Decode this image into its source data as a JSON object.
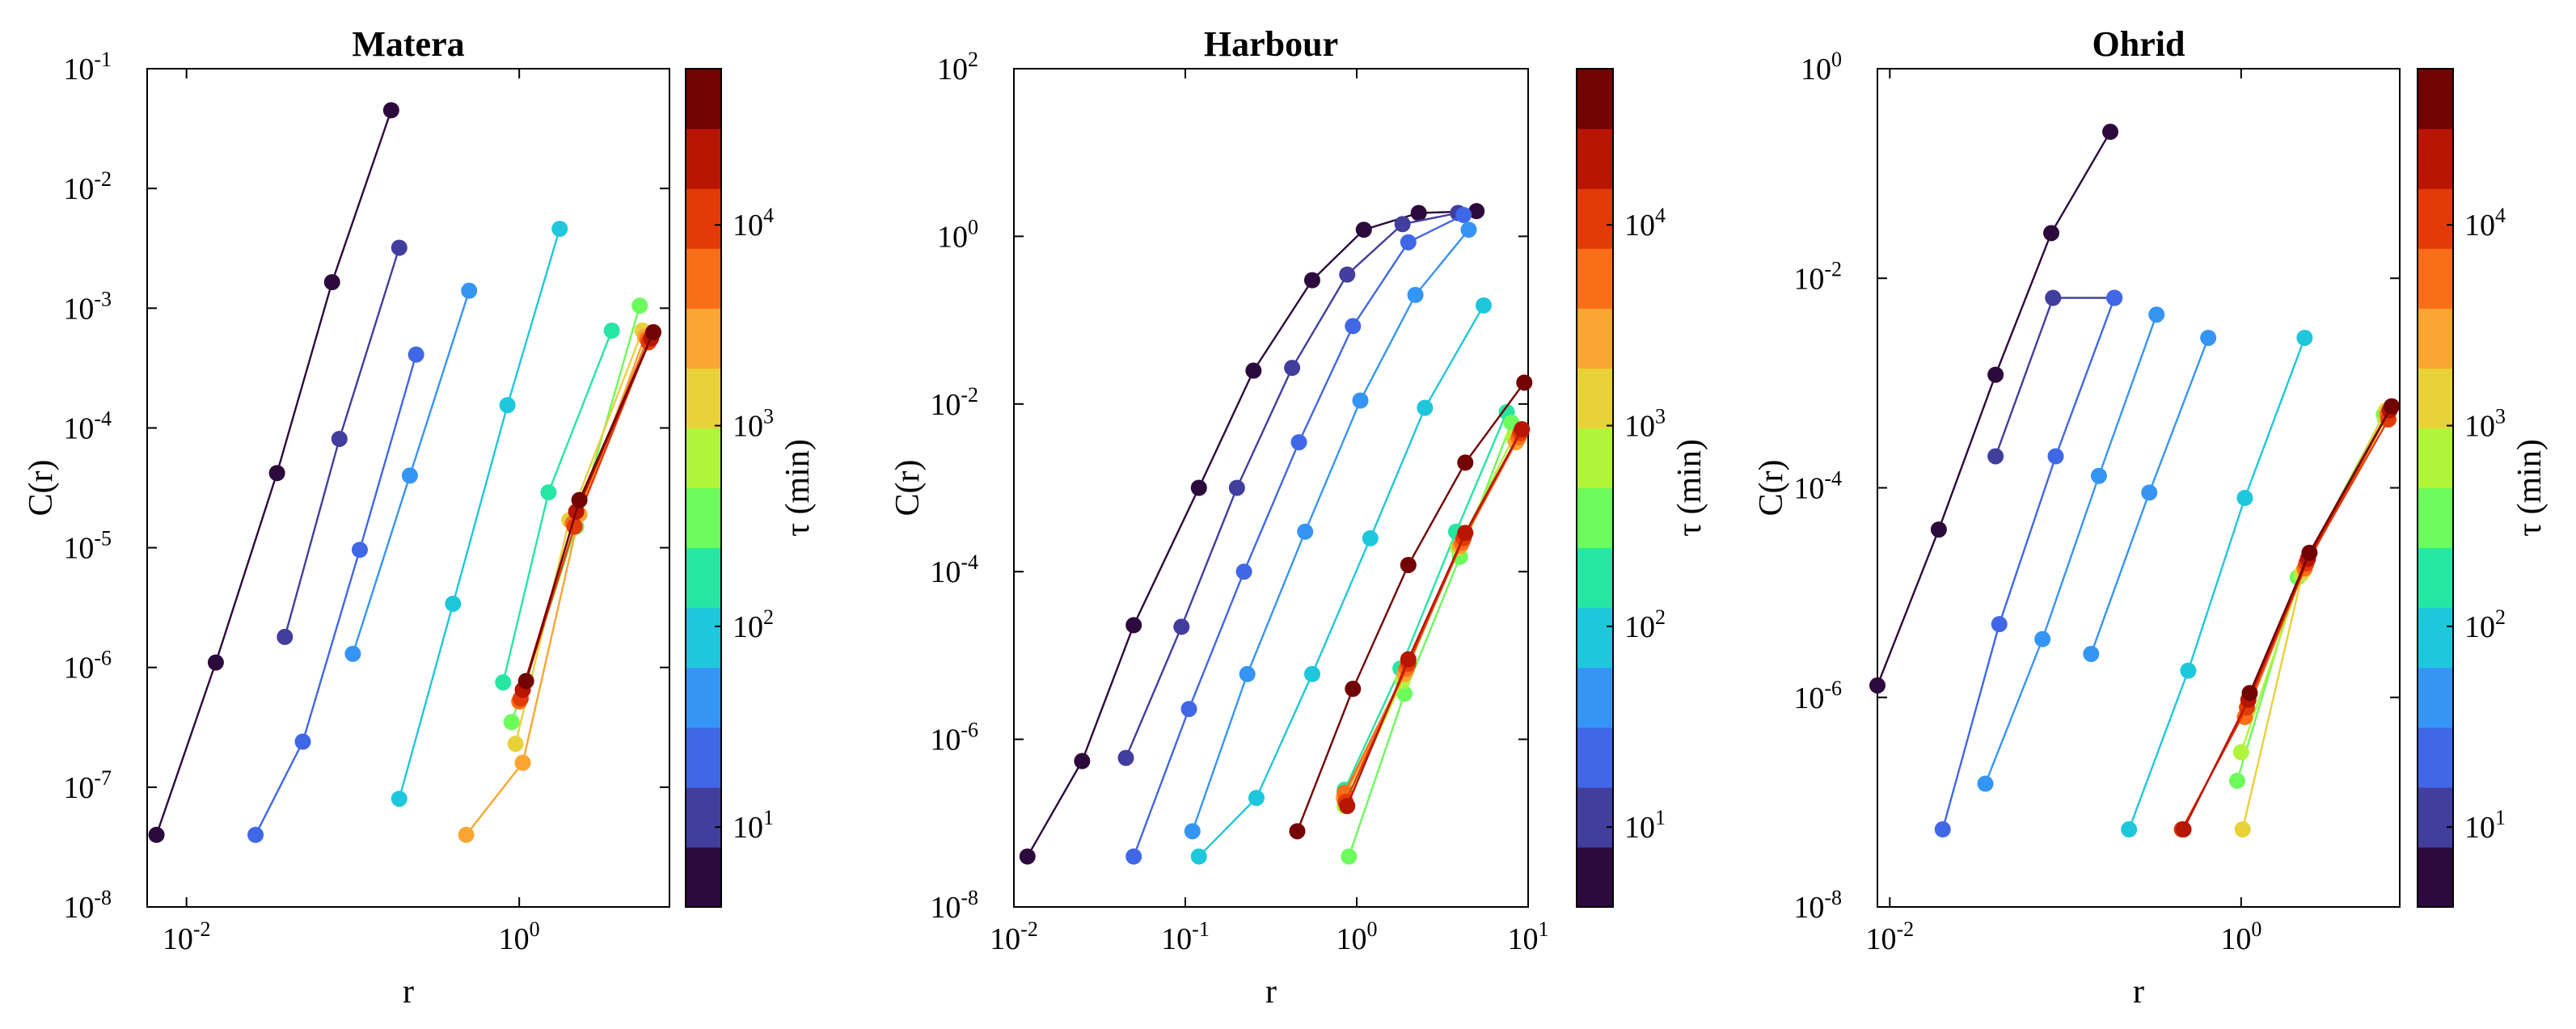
{
  "colors": {
    "colormap": [
      "#2d0a3d",
      "#413e9e",
      "#4067e6",
      "#3595f5",
      "#1ec7dc",
      "#25e6a3",
      "#6cfc5c",
      "#b1f53b",
      "#e9d13a",
      "#fba532",
      "#fa6e1a",
      "#e33b07",
      "#b81503",
      "#730202"
    ],
    "axes": "#000000",
    "background": "#ffffff"
  },
  "chart_data": [
    {
      "type": "line",
      "title": "Matera",
      "xlabel": "r",
      "ylabel": "C(r)",
      "xscale": "log",
      "yscale": "log",
      "xlim": [
        0.0058,
        8
      ],
      "ylim": [
        1e-08,
        0.1
      ],
      "xticks": [
        {
          "v": 0.01,
          "b": "10",
          "e": "-2"
        },
        {
          "v": 1,
          "b": "10",
          "e": "0"
        }
      ],
      "yticks": [
        {
          "v": 1e-08,
          "b": "10",
          "e": "-8"
        },
        {
          "v": 1e-07,
          "b": "10",
          "e": "-7"
        },
        {
          "v": 1e-06,
          "b": "10",
          "e": "-6"
        },
        {
          "v": 1e-05,
          "b": "10",
          "e": "-5"
        },
        {
          "v": 0.0001,
          "b": "10",
          "e": "-4"
        },
        {
          "v": 0.001,
          "b": "10",
          "e": "-3"
        },
        {
          "v": 0.01,
          "b": "10",
          "e": "-2"
        },
        {
          "v": 0.1,
          "b": "10",
          "e": "-1"
        }
      ],
      "colorbar": {
        "label": "τ (min)",
        "scale": "log",
        "range": [
          4,
          60000
        ],
        "ticks": [
          {
            "v": 10,
            "b": "10",
            "e": "1"
          },
          {
            "v": 100,
            "b": "10",
            "e": "2"
          },
          {
            "v": 1000,
            "b": "10",
            "e": "3"
          },
          {
            "v": 10000,
            "b": "10",
            "e": "4"
          }
        ]
      },
      "series": [
        {
          "color": 0,
          "x": [
            0.0066,
            0.015,
            0.035,
            0.075,
            0.17
          ],
          "y": [
            4e-08,
            1.1e-06,
            4.2e-05,
            0.00165,
            0.045
          ]
        },
        {
          "color": 1,
          "x": [
            0.039,
            0.083,
            0.19
          ],
          "y": [
            1.8e-06,
            8.1e-05,
            0.0032
          ]
        },
        {
          "color": 2,
          "x": [
            0.026,
            0.05,
            0.11,
            0.24
          ],
          "y": [
            4e-08,
            2.4e-07,
            9.6e-06,
            0.00041
          ]
        },
        {
          "color": 3,
          "x": [
            0.1,
            0.22,
            0.5
          ],
          "y": [
            1.3e-06,
            4e-05,
            0.0014
          ]
        },
        {
          "color": 4,
          "x": [
            0.19,
            0.4,
            0.85,
            1.75
          ],
          "y": [
            8e-08,
            3.4e-06,
            0.000155,
            0.0046
          ]
        },
        {
          "color": 5,
          "x": [
            0.8,
            1.5,
            3.6
          ],
          "y": [
            7.5e-07,
            2.9e-05,
            0.00065
          ]
        },
        {
          "color": 6,
          "x": [
            0.9,
            2.2,
            5.3
          ],
          "y": [
            3.5e-07,
            1.5e-05,
            0.00105
          ]
        },
        {
          "color": 8,
          "x": [
            0.95,
            2.0,
            5.5
          ],
          "y": [
            2.3e-07,
            1.7e-05,
            0.00065
          ]
        },
        {
          "color": 9,
          "x": [
            0.48,
            1.05,
            2.3,
            5.7
          ],
          "y": [
            4e-08,
            1.6e-07,
            1.9e-05,
            0.00058
          ]
        },
        {
          "color": 10,
          "x": [
            1.0,
            2.1,
            5.9
          ],
          "y": [
            5.2e-07,
            1.6e-05,
            0.00055
          ]
        },
        {
          "color": 11,
          "x": [
            1.02,
            2.15,
            6.0
          ],
          "y": [
            5.5e-07,
            1.5e-05,
            0.00052
          ]
        },
        {
          "color": 12,
          "x": [
            1.05,
            2.2,
            6.2
          ],
          "y": [
            6.5e-07,
            2e-05,
            0.00056
          ]
        },
        {
          "color": 13,
          "x": [
            1.1,
            2.3,
            6.4
          ],
          "y": [
            7.7e-07,
            2.5e-05,
            0.00063
          ]
        }
      ]
    },
    {
      "type": "line",
      "title": "Harbour",
      "xlabel": "r",
      "ylabel": "C(r)",
      "xscale": "log",
      "yscale": "log",
      "xlim": [
        0.01,
        10
      ],
      "ylim": [
        1e-08,
        100
      ],
      "xticks": [
        {
          "v": 0.01,
          "b": "10",
          "e": "-2"
        },
        {
          "v": 0.1,
          "b": "10",
          "e": "-1"
        },
        {
          "v": 1,
          "b": "10",
          "e": "0"
        },
        {
          "v": 10,
          "b": "10",
          "e": "1"
        }
      ],
      "yticks": [
        {
          "v": 1e-08,
          "b": "10",
          "e": "-8"
        },
        {
          "v": 1e-06,
          "b": "10",
          "e": "-6"
        },
        {
          "v": 0.0001,
          "b": "10",
          "e": "-4"
        },
        {
          "v": 0.01,
          "b": "10",
          "e": "-2"
        },
        {
          "v": 1,
          "b": "10",
          "e": "0"
        },
        {
          "v": 100,
          "b": "10",
          "e": "2"
        }
      ],
      "colorbar": {
        "label": "τ (min)",
        "scale": "log",
        "range": [
          4,
          60000
        ],
        "ticks": [
          {
            "v": 10,
            "b": "10",
            "e": "1"
          },
          {
            "v": 100,
            "b": "10",
            "e": "2"
          },
          {
            "v": 1000,
            "b": "10",
            "e": "3"
          },
          {
            "v": 10000,
            "b": "10",
            "e": "4"
          }
        ]
      },
      "series": [
        {
          "color": 0,
          "x": [
            0.012,
            0.025,
            0.05,
            0.12,
            0.25,
            0.55,
            1.1,
            2.3,
            5.0
          ],
          "y": [
            4e-08,
            5.5e-07,
            2.3e-05,
            0.001,
            0.025,
            0.3,
            1.2,
            1.9,
            2.0
          ]
        },
        {
          "color": 1,
          "x": [
            0.045,
            0.095,
            0.2,
            0.42,
            0.88,
            1.85,
            3.9
          ],
          "y": [
            6e-07,
            2.2e-05,
            0.001,
            0.027,
            0.35,
            1.4,
            1.9
          ]
        },
        {
          "color": 2,
          "x": [
            0.05,
            0.105,
            0.22,
            0.46,
            0.95,
            2.0,
            4.2
          ],
          "y": [
            4e-08,
            2.3e-06,
            0.0001,
            0.0035,
            0.085,
            0.85,
            1.8
          ]
        },
        {
          "color": 3,
          "x": [
            0.11,
            0.23,
            0.5,
            1.05,
            2.2,
            4.5
          ],
          "y": [
            8e-08,
            6e-06,
            0.0003,
            0.011,
            0.2,
            1.2
          ]
        },
        {
          "color": 4,
          "x": [
            0.12,
            0.26,
            0.55,
            1.2,
            2.5,
            5.5
          ],
          "y": [
            4e-08,
            2e-07,
            6e-06,
            0.00025,
            0.009,
            0.15
          ]
        },
        {
          "color": 5,
          "x": [
            0.85,
            1.8,
            3.8,
            7.5
          ],
          "y": [
            2.5e-07,
            7e-06,
            0.0003,
            0.008
          ]
        },
        {
          "color": 6,
          "x": [
            0.9,
            1.9,
            4.0,
            8.0
          ],
          "y": [
            4e-08,
            3.5e-06,
            0.00015,
            0.006
          ]
        },
        {
          "color": 7,
          "x": [
            0.85,
            1.85,
            3.9,
            8.2
          ],
          "y": [
            1.6e-07,
            5e-06,
            0.00019,
            0.004
          ]
        },
        {
          "color": 9,
          "x": [
            0.84,
            1.9,
            4.0,
            8.5
          ],
          "y": [
            2e-07,
            6e-06,
            0.0002,
            0.0035
          ]
        },
        {
          "color": 10,
          "x": [
            0.85,
            1.95,
            4.1,
            8.8
          ],
          "y": [
            2.3e-07,
            7e-06,
            0.00022,
            0.004
          ]
        },
        {
          "color": 11,
          "x": [
            0.86,
            2.0,
            4.2,
            9.0
          ],
          "y": [
            1.8e-07,
            8e-06,
            0.00025,
            0.0045
          ]
        },
        {
          "color": 12,
          "x": [
            0.88,
            2.0,
            4.3,
            9.2
          ],
          "y": [
            1.6e-07,
            9e-06,
            0.00029,
            0.005
          ]
        },
        {
          "color": 13,
          "x": [
            0.45,
            0.95,
            2.0,
            4.3,
            9.5
          ],
          "y": [
            8e-08,
            4e-06,
            0.00012,
            0.002,
            0.018
          ]
        }
      ]
    },
    {
      "type": "line",
      "title": "Ohrid",
      "xlabel": "r",
      "ylabel": "C(r)",
      "xscale": "log",
      "yscale": "log",
      "xlim": [
        0.0085,
        8
      ],
      "ylim": [
        1e-08,
        1
      ],
      "xticks": [
        {
          "v": 0.01,
          "b": "10",
          "e": "-2"
        },
        {
          "v": 1,
          "b": "10",
          "e": "0"
        }
      ],
      "yticks": [
        {
          "v": 1e-08,
          "b": "10",
          "e": "-8"
        },
        {
          "v": 1e-06,
          "b": "10",
          "e": "-6"
        },
        {
          "v": 0.0001,
          "b": "10",
          "e": "-4"
        },
        {
          "v": 0.01,
          "b": "10",
          "e": "-2"
        },
        {
          "v": 1,
          "b": "10",
          "e": "0"
        }
      ],
      "colorbar": {
        "label": "τ (min)",
        "scale": "log",
        "range": [
          4,
          60000
        ],
        "ticks": [
          {
            "v": 10,
            "b": "10",
            "e": "1"
          },
          {
            "v": 100,
            "b": "10",
            "e": "2"
          },
          {
            "v": 1000,
            "b": "10",
            "e": "3"
          },
          {
            "v": 10000,
            "b": "10",
            "e": "4"
          }
        ]
      },
      "series": [
        {
          "color": 0,
          "x": [
            0.0085,
            0.019,
            0.04,
            0.083,
            0.18
          ],
          "y": [
            1.3e-06,
            4e-05,
            0.0012,
            0.027,
            0.25
          ]
        },
        {
          "color": 1,
          "x": [
            0.04,
            0.085,
            0.19
          ],
          "y": [
            0.0002,
            0.0065,
            0.0065
          ]
        },
        {
          "color": 2,
          "x": [
            0.02,
            0.042,
            0.088,
            0.19
          ],
          "y": [
            5.5e-08,
            5e-06,
            0.0002,
            0.0065
          ]
        },
        {
          "color": 3,
          "x": [
            0.035,
            0.074,
            0.155,
            0.33
          ],
          "y": [
            1.5e-07,
            3.6e-06,
            0.00013,
            0.0045
          ]
        },
        {
          "color": 3,
          "x": [
            0.14,
            0.3,
            0.65
          ],
          "y": [
            2.6e-06,
            9e-05,
            0.0027
          ]
        },
        {
          "color": 4,
          "x": [
            0.23,
            0.5,
            1.05,
            2.3
          ],
          "y": [
            5.5e-08,
            1.8e-06,
            8e-05,
            0.0027
          ]
        },
        {
          "color": 6,
          "x": [
            0.95,
            2.1,
            6.5
          ],
          "y": [
            1.6e-07,
            1.4e-05,
            0.0005
          ]
        },
        {
          "color": 7,
          "x": [
            1.0,
            2.2,
            6.6
          ],
          "y": [
            3e-07,
            1.5e-05,
            0.00045
          ]
        },
        {
          "color": 8,
          "x": [
            1.02,
            2.25,
            6.7
          ],
          "y": [
            5.5e-08,
            1.6e-05,
            0.00055
          ]
        },
        {
          "color": 10,
          "x": [
            1.05,
            2.3,
            6.8
          ],
          "y": [
            6.5e-07,
            1.7e-05,
            0.0005
          ]
        },
        {
          "color": 11,
          "x": [
            0.46,
            1.08,
            2.35,
            6.9
          ],
          "y": [
            5.5e-08,
            8e-07,
            1.9e-05,
            0.00045
          ]
        },
        {
          "color": 12,
          "x": [
            0.47,
            1.1,
            2.4,
            7.0
          ],
          "y": [
            5.5e-08,
            9.5e-07,
            2.1e-05,
            0.00055
          ]
        },
        {
          "color": 13,
          "x": [
            1.12,
            2.45,
            7.2
          ],
          "y": [
            1.1e-06,
            2.4e-05,
            0.0006
          ]
        }
      ]
    }
  ]
}
